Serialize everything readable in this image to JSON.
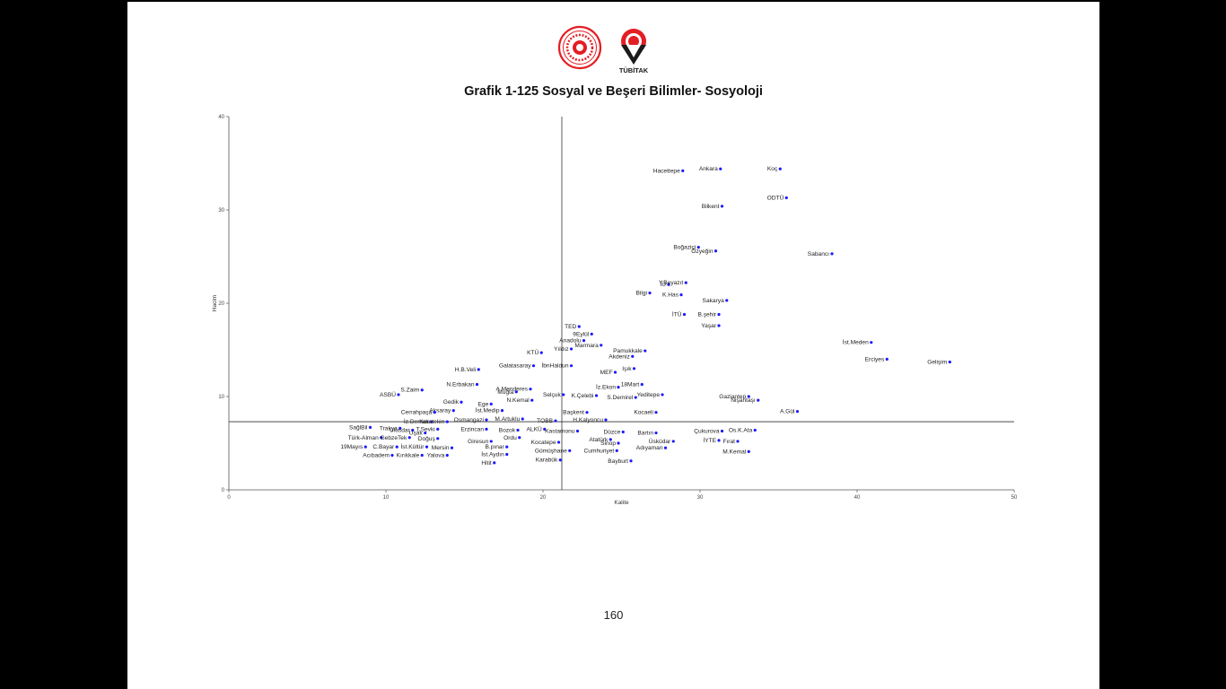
{
  "logos": {
    "left_seal_color": "#e31e24",
    "right_logo_color": "#e31e24",
    "right_logo_text": "TÜBİTAK"
  },
  "title": "Grafik 1-125 Sosyal ve Beşeri Bilimler- Sosyoloji",
  "page_number": "160",
  "chart_data": {
    "type": "scatter",
    "title": "Grafik 1-125 Sosyal ve Beşeri Bilimler- Sosyoloji",
    "xlabel": "Kalite",
    "ylabel": "Hacim",
    "xlim": [
      0,
      50
    ],
    "ylim": [
      0,
      40
    ],
    "xticks": [
      "0",
      "10",
      "20",
      "30",
      "40",
      "50"
    ],
    "yticks": [
      "0",
      "10",
      "20",
      "30",
      "40"
    ],
    "reference_lines": {
      "x": 21.2,
      "y": 7.3
    },
    "grid": false,
    "point_color": "#1a1aff",
    "points": [
      {
        "label": "Hacettepe",
        "x": 28.9,
        "y": 34.2
      },
      {
        "label": "Ankara",
        "x": 31.3,
        "y": 34.4
      },
      {
        "label": "Koç",
        "x": 35.1,
        "y": 34.4
      },
      {
        "label": "ODTÜ",
        "x": 35.5,
        "y": 31.3
      },
      {
        "label": "Bilkent",
        "x": 31.4,
        "y": 30.4
      },
      {
        "label": "Boğaziçi",
        "x": 29.9,
        "y": 26.0
      },
      {
        "label": "Özyeğin",
        "x": 31.0,
        "y": 25.6
      },
      {
        "label": "Sabancı",
        "x": 38.4,
        "y": 25.3
      },
      {
        "label": "İÜ",
        "x": 28.0,
        "y": 22.0
      },
      {
        "label": "Y.Beyazıt",
        "x": 29.1,
        "y": 22.2
      },
      {
        "label": "Bilgi",
        "x": 26.8,
        "y": 21.1
      },
      {
        "label": "K.Has",
        "x": 28.8,
        "y": 20.9
      },
      {
        "label": "Sakarya",
        "x": 31.7,
        "y": 20.3
      },
      {
        "label": "İTÜ",
        "x": 29.0,
        "y": 18.8
      },
      {
        "label": "B.şehir",
        "x": 31.2,
        "y": 18.8
      },
      {
        "label": "Yaşar",
        "x": 31.2,
        "y": 17.6
      },
      {
        "label": "TED",
        "x": 22.3,
        "y": 17.5
      },
      {
        "label": "Anadolu",
        "x": 22.6,
        "y": 16.0
      },
      {
        "label": "9Eylül",
        "x": 23.1,
        "y": 16.7
      },
      {
        "label": "Yıldız",
        "x": 21.8,
        "y": 15.1
      },
      {
        "label": "KTÜ",
        "x": 19.9,
        "y": 14.7
      },
      {
        "label": "Marmara",
        "x": 23.7,
        "y": 15.5
      },
      {
        "label": "Pamukkale",
        "x": 26.5,
        "y": 14.9
      },
      {
        "label": "İst.Meden",
        "x": 40.9,
        "y": 15.8
      },
      {
        "label": "Erciyes",
        "x": 41.9,
        "y": 14.0
      },
      {
        "label": "Gelişim",
        "x": 45.9,
        "y": 13.7
      },
      {
        "label": "Akdeniz",
        "x": 25.7,
        "y": 14.3
      },
      {
        "label": "Galatasaray",
        "x": 19.4,
        "y": 13.3
      },
      {
        "label": "İbnHaldun",
        "x": 21.8,
        "y": 13.3
      },
      {
        "label": "MEF",
        "x": 24.6,
        "y": 12.6
      },
      {
        "label": "Işık",
        "x": 25.8,
        "y": 13.0
      },
      {
        "label": "H.B.Veli",
        "x": 15.9,
        "y": 12.9
      },
      {
        "label": "İz.Ekon",
        "x": 24.8,
        "y": 11.0
      },
      {
        "label": "18Mart",
        "x": 26.3,
        "y": 11.3
      },
      {
        "label": "N.Erbakan",
        "x": 15.8,
        "y": 11.3
      },
      {
        "label": "A.Menderes",
        "x": 19.2,
        "y": 10.8
      },
      {
        "label": "S.Zaim",
        "x": 12.3,
        "y": 10.7
      },
      {
        "label": "Muğla",
        "x": 18.3,
        "y": 10.5
      },
      {
        "label": "Selçuk",
        "x": 21.3,
        "y": 10.2
      },
      {
        "label": "Yeditepe",
        "x": 27.6,
        "y": 10.2
      },
      {
        "label": "Gaziantep",
        "x": 33.1,
        "y": 10.0
      },
      {
        "label": "ASBÜ",
        "x": 10.8,
        "y": 10.2
      },
      {
        "label": "K.Çelebi",
        "x": 23.4,
        "y": 10.1
      },
      {
        "label": "S.Demirel",
        "x": 25.9,
        "y": 9.9
      },
      {
        "label": "N.Kemal",
        "x": 19.3,
        "y": 9.6
      },
      {
        "label": "Gedik",
        "x": 14.8,
        "y": 9.4
      },
      {
        "label": "Ege",
        "x": 16.7,
        "y": 9.2
      },
      {
        "label": "Nişantaşı",
        "x": 33.7,
        "y": 9.6
      },
      {
        "label": "Aksaray",
        "x": 14.3,
        "y": 8.5
      },
      {
        "label": "İst.Medip",
        "x": 17.4,
        "y": 8.5
      },
      {
        "label": "Başkent",
        "x": 22.8,
        "y": 8.3
      },
      {
        "label": "Kocaeli",
        "x": 27.2,
        "y": 8.3
      },
      {
        "label": "A.Gül",
        "x": 36.2,
        "y": 8.4
      },
      {
        "label": "Cerrahpaşa",
        "x": 13.1,
        "y": 8.3
      },
      {
        "label": "Osmangazi",
        "x": 16.4,
        "y": 7.5
      },
      {
        "label": "M.Artuklu",
        "x": 18.7,
        "y": 7.6
      },
      {
        "label": "TOBB",
        "x": 20.8,
        "y": 7.4
      },
      {
        "label": "H.Kalyoncu",
        "x": 24.0,
        "y": 7.5
      },
      {
        "label": "İz.Demok",
        "x": 12.9,
        "y": 7.3
      },
      {
        "label": "Karatekin",
        "x": 13.9,
        "y": 7.3
      },
      {
        "label": "SağlBil",
        "x": 9.0,
        "y": 6.7
      },
      {
        "label": "Trakya",
        "x": 10.9,
        "y": 6.6
      },
      {
        "label": "Ulusdar",
        "x": 11.7,
        "y": 6.4
      },
      {
        "label": "T.Sevki",
        "x": 13.3,
        "y": 6.5
      },
      {
        "label": "Uşak",
        "x": 12.5,
        "y": 6.1
      },
      {
        "label": "Erzincan",
        "x": 16.4,
        "y": 6.5
      },
      {
        "label": "Bozok",
        "x": 18.4,
        "y": 6.4
      },
      {
        "label": "ALKÜ",
        "x": 20.1,
        "y": 6.5
      },
      {
        "label": "Kastamonu",
        "x": 22.2,
        "y": 6.3
      },
      {
        "label": "Düzce",
        "x": 25.1,
        "y": 6.2
      },
      {
        "label": "Bartın",
        "x": 27.2,
        "y": 6.1
      },
      {
        "label": "Çukurova",
        "x": 31.4,
        "y": 6.3
      },
      {
        "label": "Os.K.Ata",
        "x": 33.5,
        "y": 6.4
      },
      {
        "label": "Türk-Alman",
        "x": 9.7,
        "y": 5.6
      },
      {
        "label": "GebzeTek",
        "x": 11.5,
        "y": 5.6
      },
      {
        "label": "Doğuş",
        "x": 13.3,
        "y": 5.5
      },
      {
        "label": "Ordu",
        "x": 18.5,
        "y": 5.6
      },
      {
        "label": "Atatürk",
        "x": 24.3,
        "y": 5.4
      },
      {
        "label": "Üsküdar",
        "x": 28.3,
        "y": 5.2
      },
      {
        "label": "İYTE",
        "x": 31.2,
        "y": 5.3
      },
      {
        "label": "Fırat",
        "x": 32.4,
        "y": 5.2
      },
      {
        "label": "Giresun",
        "x": 16.7,
        "y": 5.2
      },
      {
        "label": "Kocatepe",
        "x": 21.0,
        "y": 5.1
      },
      {
        "label": "Sinop",
        "x": 24.8,
        "y": 5.0
      },
      {
        "label": "19Mayıs",
        "x": 8.7,
        "y": 4.6
      },
      {
        "label": "C.Bayar",
        "x": 10.7,
        "y": 4.6
      },
      {
        "label": "İst.Kültür",
        "x": 12.6,
        "y": 4.6
      },
      {
        "label": "Mersin",
        "x": 14.2,
        "y": 4.5
      },
      {
        "label": "B.pınar",
        "x": 17.7,
        "y": 4.6
      },
      {
        "label": "Adıyaman",
        "x": 27.8,
        "y": 4.5
      },
      {
        "label": "Gümüşhane",
        "x": 21.7,
        "y": 4.2
      },
      {
        "label": "Cumhuriyet",
        "x": 24.7,
        "y": 4.2
      },
      {
        "label": "Acıbadem",
        "x": 10.4,
        "y": 3.7
      },
      {
        "label": "Kırıkkale",
        "x": 12.3,
        "y": 3.7
      },
      {
        "label": "Yalova",
        "x": 13.9,
        "y": 3.7
      },
      {
        "label": "İst.Aydın",
        "x": 17.7,
        "y": 3.8
      },
      {
        "label": "M.Kemal",
        "x": 33.1,
        "y": 4.1
      },
      {
        "label": "Hitit",
        "x": 16.9,
        "y": 2.9
      },
      {
        "label": "Karabük",
        "x": 21.1,
        "y": 3.2
      },
      {
        "label": "Bayburt",
        "x": 25.6,
        "y": 3.1
      }
    ]
  }
}
